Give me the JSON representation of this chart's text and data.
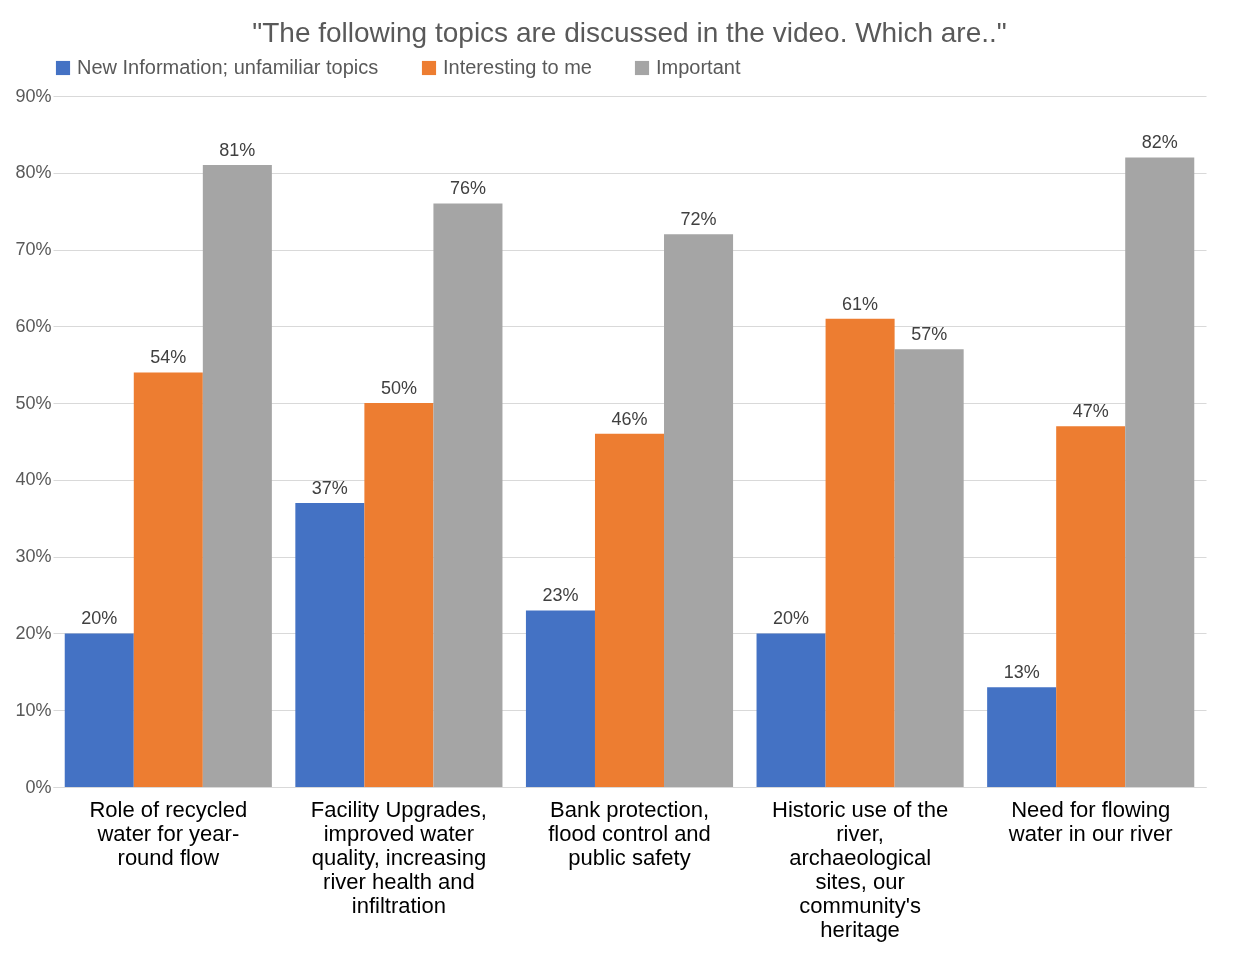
{
  "chart_data": {
    "type": "bar",
    "title": "\"The following topics are discussed in the video. Which are..\"",
    "categories": [
      "Role of recycled water for year-round flow",
      "Facility Upgrades, improved water quality, increasing river health and infiltration",
      "Bank protection, flood control and public safety",
      "Historic use of the river, archaeological sites, our community's heritage",
      "Need for flowing water in our river"
    ],
    "series": [
      {
        "name": "New Information; unfamiliar topics",
        "color": "#4472c4",
        "values": [
          20,
          37,
          23,
          20,
          13
        ]
      },
      {
        "name": "Interesting to me",
        "color": "#ed7d31",
        "values": [
          54,
          50,
          46,
          61,
          47
        ]
      },
      {
        "name": "Important",
        "color": "#a5a5a5",
        "values": [
          81,
          76,
          72,
          57,
          82
        ]
      }
    ],
    "ylim": [
      0,
      90
    ],
    "yticks": [
      {
        "value": 0,
        "label": "0%"
      },
      {
        "value": 10,
        "label": "10%"
      },
      {
        "value": 20,
        "label": "20%"
      },
      {
        "value": 30,
        "label": "30%"
      },
      {
        "value": 40,
        "label": "40%"
      },
      {
        "value": 50,
        "label": "50%"
      },
      {
        "value": 60,
        "label": "60%"
      },
      {
        "value": 70,
        "label": "70%"
      },
      {
        "value": 80,
        "label": "80%"
      },
      {
        "value": 90,
        "label": "90%"
      }
    ],
    "value_labels": [
      [
        "20%",
        "37%",
        "23%",
        "20%",
        "13%"
      ],
      [
        "54%",
        "50%",
        "46%",
        "61%",
        "47%"
      ],
      [
        "81%",
        "76%",
        "72%",
        "57%",
        "82%"
      ]
    ],
    "grid": "y",
    "legend": "top"
  }
}
